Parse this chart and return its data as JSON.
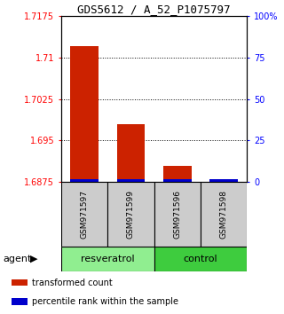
{
  "title": "GDS5612 / A_52_P1075797",
  "samples": [
    "GSM971597",
    "GSM971599",
    "GSM971596",
    "GSM971598"
  ],
  "red_values": [
    1.712,
    1.698,
    1.6905,
    1.6875
  ],
  "blue_values_pct": [
    2,
    2,
    2,
    2
  ],
  "ylim_left": [
    1.6875,
    1.7175
  ],
  "ylim_right": [
    0,
    100
  ],
  "yticks_left": [
    1.6875,
    1.695,
    1.7025,
    1.71,
    1.7175
  ],
  "yticks_right": [
    0,
    25,
    50,
    75,
    100
  ],
  "ytick_labels_left": [
    "1.6875",
    "1.695",
    "1.7025",
    "1.71",
    "1.7175"
  ],
  "ytick_labels_right": [
    "0",
    "25",
    "50",
    "75",
    "100%"
  ],
  "groups": [
    {
      "label": "resveratrol",
      "indices": [
        0,
        1
      ],
      "color": "#90EE90"
    },
    {
      "label": "control",
      "indices": [
        2,
        3
      ],
      "color": "#3ECC3E"
    }
  ],
  "bar_width": 0.6,
  "bar_color_red": "#CC2200",
  "bar_color_blue": "#0000CC",
  "sample_box_color": "#CCCCCC",
  "bg_color": "#FFFFFF",
  "legend_items": [
    {
      "color": "#CC2200",
      "label": "transformed count"
    },
    {
      "color": "#0000CC",
      "label": "percentile rank within the sample"
    }
  ]
}
